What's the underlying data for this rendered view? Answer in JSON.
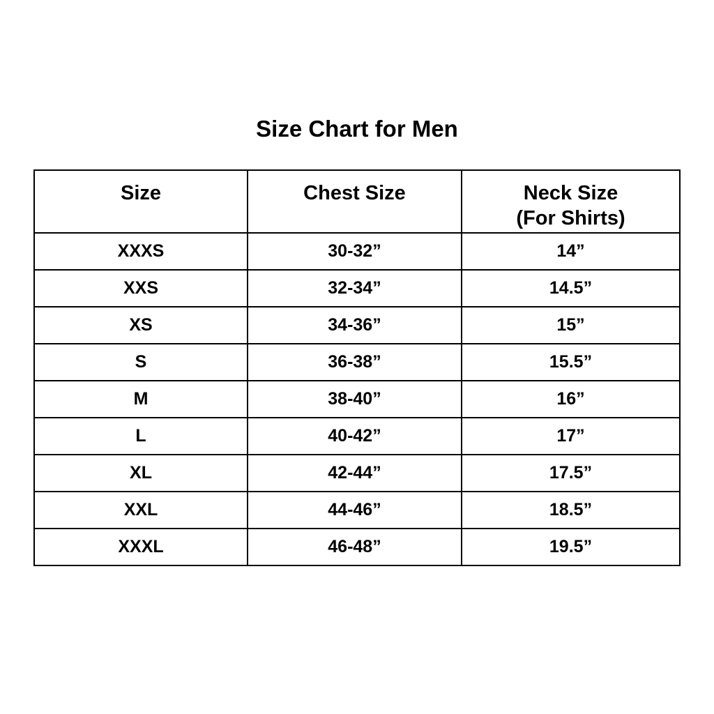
{
  "title": "Size Chart for Men",
  "colors": {
    "background": "#ffffff",
    "text": "#000000",
    "border": "#000000"
  },
  "chart_data": {
    "type": "table",
    "title": "Size Chart for Men",
    "columns": [
      "Size",
      "Chest Size",
      "Neck Size\n(For Shirts)"
    ],
    "rows": [
      [
        "XXXS",
        "30-32”",
        "14”"
      ],
      [
        "XXS",
        "32-34”",
        "14.5”"
      ],
      [
        "XS",
        "34-36”",
        "15”"
      ],
      [
        "S",
        "36-38”",
        "15.5”"
      ],
      [
        "M",
        "38-40”",
        "16”"
      ],
      [
        "L",
        "40-42”",
        "17”"
      ],
      [
        "XL",
        "42-44”",
        "17.5”"
      ],
      [
        "XXL",
        "44-46”",
        "18.5”"
      ],
      [
        "XXXL",
        "46-48”",
        "19.5”"
      ]
    ]
  }
}
